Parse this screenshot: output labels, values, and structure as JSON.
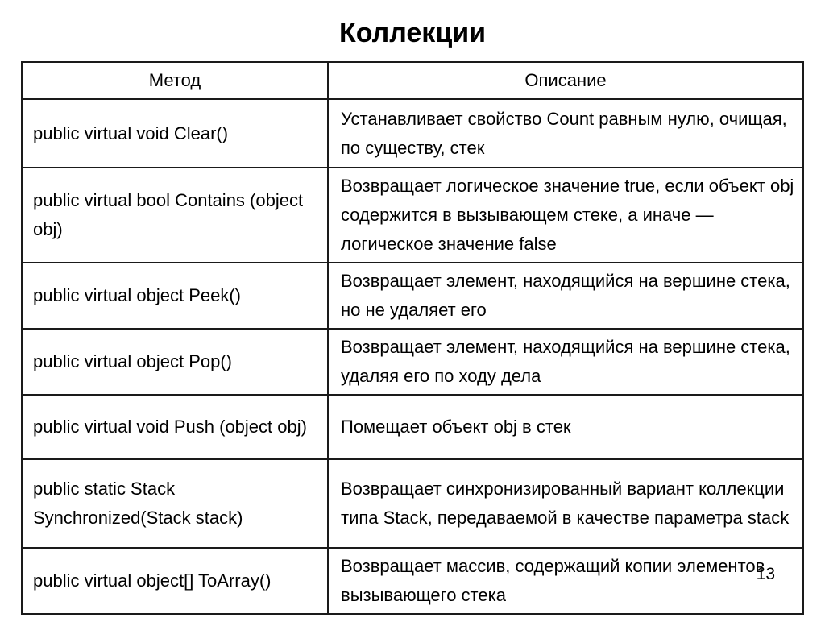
{
  "page": {
    "title": "Коллекции",
    "page_number": "13"
  },
  "table": {
    "headers": {
      "method": "Метод",
      "description": "Описание"
    },
    "rows": [
      {
        "method": "public virtual void Clear()",
        "description": "Устанавливает свойство Count равным нулю, очищая, по существу, стек"
      },
      {
        "method": "public virtual bool Contains (object obj)",
        "description": "Возвращает логическое значение true, если объект obj содержится в вызывающем стеке, а иначе — логическое значение false"
      },
      {
        "method": "public virtual object Peek()",
        "description": "Возвращает элемент, находящийся на вершине стека, но не удаляет его"
      },
      {
        "method": "public virtual object Pop()",
        "description": "Возвращает элемент, находящийся на вершине стека, удаляя его по ходу дела"
      },
      {
        "method": "public virtual void Push (object obj)",
        "description": "Помещает объект obj в стек"
      },
      {
        "method": "public static Stack Synchronized(Stack stack)",
        "description": "Возвращает синхронизированный вариант коллекции типа Stack, передаваемой в качестве параметра stack"
      },
      {
        "method": "public virtual object[] ToArray()",
        "description": "Возвращает массив, содержащий копии элементов вызывающего стека"
      }
    ]
  }
}
